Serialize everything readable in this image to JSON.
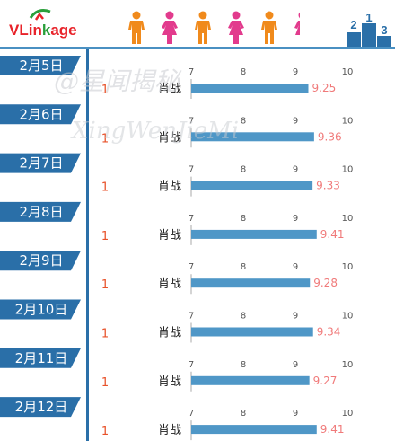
{
  "brand": {
    "name_prefix": "VLin",
    "name_k": "k",
    "name_suffix": "age",
    "red": "#e8232a",
    "green": "#2a9f3b"
  },
  "header_icons": [
    "person-icon-male",
    "person-icon-female",
    "person-icon-male",
    "person-icon-female",
    "person-icon-male",
    "person-icon-female"
  ],
  "watermark": {
    "line1": "@星闻揭秘",
    "line2": "XingWenJieMi"
  },
  "colors": {
    "badge": "#2a6fa8",
    "bar": "#4f97c7",
    "value": "#f07a7a",
    "rank": "#e8522a",
    "male": "#f08a1c",
    "female": "#e23b8d"
  },
  "chart_data": {
    "type": "bar",
    "orientation": "horizontal",
    "xlim": [
      7,
      10
    ],
    "ticks": [
      "7",
      "8",
      "9",
      "10"
    ],
    "rows": [
      {
        "date": "2月5日",
        "rank": "1",
        "name": "肖战",
        "value": 9.25,
        "label": "9.25"
      },
      {
        "date": "2月6日",
        "rank": "1",
        "name": "肖战",
        "value": 9.36,
        "label": "9.36"
      },
      {
        "date": "2月7日",
        "rank": "1",
        "name": "肖战",
        "value": 9.33,
        "label": "9.33"
      },
      {
        "date": "2月8日",
        "rank": "1",
        "name": "肖战",
        "value": 9.41,
        "label": "9.41"
      },
      {
        "date": "2月9日",
        "rank": "1",
        "name": "肖战",
        "value": 9.28,
        "label": "9.28"
      },
      {
        "date": "2月10日",
        "rank": "1",
        "name": "肖战",
        "value": 9.34,
        "label": "9.34"
      },
      {
        "date": "2月11日",
        "rank": "1",
        "name": "肖战",
        "value": 9.27,
        "label": "9.27"
      },
      {
        "date": "2月12日",
        "rank": "1",
        "name": "肖战",
        "value": 9.41,
        "label": "9.41"
      }
    ]
  }
}
